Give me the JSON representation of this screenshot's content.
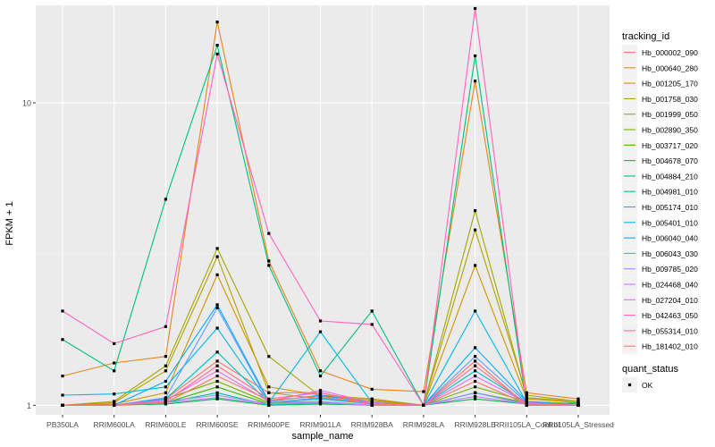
{
  "chart_data": {
    "type": "line",
    "xlabel": "sample_name",
    "ylabel": "FPKM + 1",
    "y_scale": "log10",
    "ylim": [
      0.93,
      21
    ],
    "y_ticks": [
      1,
      10
    ],
    "y_tick_labels": [
      "1",
      "10"
    ],
    "grid": true,
    "legend_position": "right",
    "legend_title": "tracking_id",
    "shape_legend_title": "quant_status",
    "shape_legend_items": [
      "OK"
    ],
    "categories": [
      "PB350LA",
      "RRIM600LA",
      "RRIM600LE",
      "RRIM600SE",
      "RRIM600PE",
      "RRIM901LA",
      "RRIM928BA",
      "RRIM928LA",
      "RRIM928LE",
      "RRII105LA_Control",
      "RRII105LA_Stressed"
    ],
    "series": [
      {
        "name": "Hb_000002_090",
        "color": "#F8766D",
        "values": [
          1.0,
          1.0,
          1.05,
          1.4,
          1.1,
          1.1,
          1.02,
          1.0,
          1.4,
          1.0,
          1.0
        ]
      },
      {
        "name": "Hb_000640_280",
        "color": "#E7851E",
        "values": [
          1.25,
          1.38,
          1.45,
          18.5,
          3.0,
          1.3,
          1.13,
          1.11,
          11.8,
          1.1,
          1.05
        ]
      },
      {
        "name": "Hb_001205_170",
        "color": "#D09400",
        "values": [
          1.0,
          1.01,
          1.1,
          2.7,
          1.15,
          1.08,
          1.05,
          1.0,
          2.9,
          1.05,
          1.02
        ]
      },
      {
        "name": "Hb_001758_030",
        "color": "#B2A100",
        "values": [
          1.0,
          1.02,
          1.3,
          3.1,
          1.1,
          1.05,
          1.03,
          1.0,
          3.8,
          1.08,
          1.03
        ]
      },
      {
        "name": "Hb_001999_050",
        "color": "#A3A500",
        "values": [
          1.0,
          1.03,
          1.35,
          3.3,
          1.45,
          1.07,
          1.04,
          1.0,
          4.4,
          1.06,
          1.03
        ]
      },
      {
        "name": "Hb_002890_350",
        "color": "#72B000",
        "values": [
          1.0,
          1.0,
          1.05,
          1.2,
          1.02,
          1.03,
          1.0,
          1.0,
          1.15,
          1.03,
          1.01
        ]
      },
      {
        "name": "Hb_003717_020",
        "color": "#39B600",
        "values": [
          1.0,
          1.0,
          1.02,
          1.15,
          1.01,
          1.02,
          1.0,
          1.0,
          1.1,
          1.02,
          1.0
        ]
      },
      {
        "name": "Hb_004678_070",
        "color": "#00BB4E",
        "values": [
          1.0,
          1.0,
          1.01,
          1.05,
          1.0,
          1.01,
          1.0,
          1.0,
          1.05,
          1.01,
          1.0
        ]
      },
      {
        "name": "Hb_004884_210",
        "color": "#00BF7D",
        "values": [
          1.65,
          1.3,
          4.8,
          15.5,
          2.9,
          1.25,
          2.05,
          1.0,
          14.3,
          1.0,
          1.02
        ]
      },
      {
        "name": "Hb_004981_010",
        "color": "#00C1A3",
        "values": [
          1.0,
          1.0,
          1.02,
          1.1,
          1.0,
          1.02,
          1.0,
          1.0,
          1.1,
          1.01,
          1.0
        ]
      },
      {
        "name": "Hb_005174_010",
        "color": "#00BFC4",
        "values": [
          1.0,
          1.0,
          1.05,
          1.5,
          1.02,
          1.05,
          1.01,
          1.0,
          1.3,
          1.02,
          1.0
        ]
      },
      {
        "name": "Hb_005401_010",
        "color": "#00B8E5",
        "values": [
          1.08,
          1.09,
          1.15,
          1.8,
          1.02,
          1.75,
          1.02,
          1.0,
          2.05,
          1.02,
          1.0
        ]
      },
      {
        "name": "Hb_006040_040",
        "color": "#00ABFD",
        "values": [
          1.0,
          1.0,
          1.2,
          2.15,
          1.03,
          1.08,
          1.02,
          1.0,
          1.55,
          1.03,
          1.0
        ]
      },
      {
        "name": "Hb_006043_030",
        "color": "#619CFF",
        "values": [
          1.0,
          1.0,
          1.06,
          2.1,
          1.02,
          1.06,
          1.01,
          1.0,
          1.45,
          1.02,
          1.0
        ]
      },
      {
        "name": "Hb_009785_020",
        "color": "#9590FF",
        "values": [
          1.0,
          1.0,
          1.03,
          1.08,
          1.01,
          1.02,
          1.0,
          1.0,
          1.1,
          1.01,
          1.0
        ]
      },
      {
        "name": "Hb_024468_040",
        "color": "#C77CFF",
        "values": [
          1.0,
          1.0,
          1.02,
          1.06,
          1.01,
          1.03,
          1.0,
          1.0,
          1.07,
          1.01,
          1.0
        ]
      },
      {
        "name": "Hb_027204_010",
        "color": "#E76BF3",
        "values": [
          1.0,
          1.0,
          1.04,
          1.3,
          1.03,
          1.12,
          1.02,
          1.0,
          1.25,
          1.02,
          1.0
        ]
      },
      {
        "name": "Hb_042463_050",
        "color": "#FF62BC",
        "values": [
          2.05,
          1.6,
          1.82,
          14.5,
          3.7,
          1.9,
          1.85,
          1.0,
          20.5,
          1.0,
          1.0
        ]
      },
      {
        "name": "Hb_055314_010",
        "color": "#FF6C91",
        "values": [
          1.0,
          1.0,
          1.03,
          1.35,
          1.05,
          1.1,
          1.01,
          1.0,
          1.35,
          1.01,
          1.0
        ]
      },
      {
        "name": "Hb_181402_010",
        "color": "#F8766D",
        "values": [
          1.0,
          1.0,
          1.02,
          1.25,
          1.04,
          1.07,
          1.01,
          1.0,
          1.2,
          1.01,
          1.0
        ]
      }
    ]
  }
}
